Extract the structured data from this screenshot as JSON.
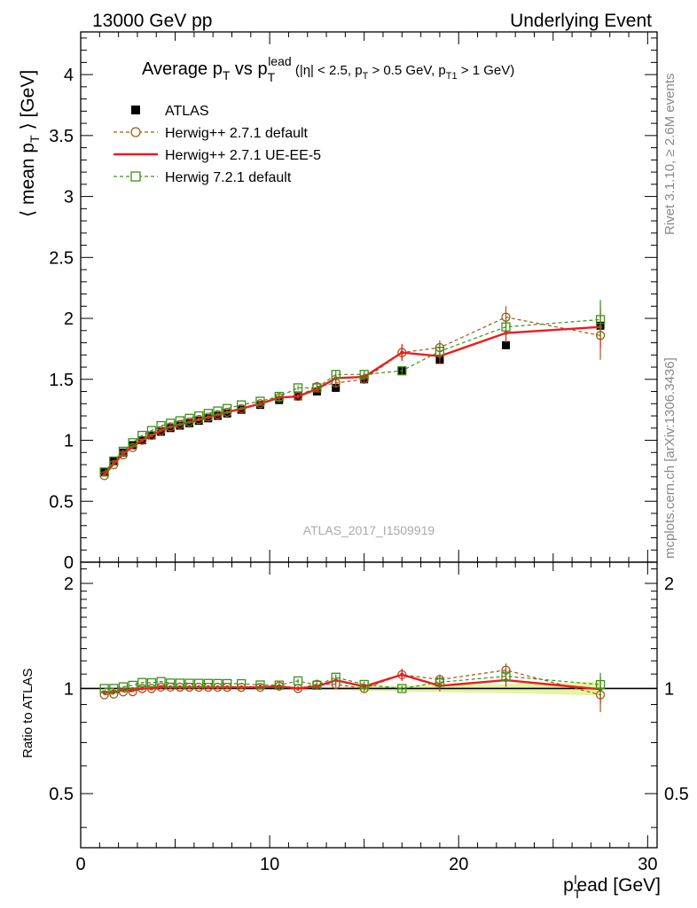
{
  "header": {
    "left": "13000 GeV pp",
    "right": "Underlying Event"
  },
  "side_labels": {
    "rivet": "Rivet 3.1.10, ≥ 2.6M events",
    "mcplots": "mcplots.cern.ch [arXiv:1306.3436]"
  },
  "chart_data": [
    {
      "type": "scatter",
      "panel": "main",
      "title_parts": {
        "pre": "Average p",
        "sub1": "T",
        "mid": " vs p",
        "sub2": "T",
        "sup2": "lead",
        "cond": " (|η| < 2.5, p",
        "cond_sub1": "T",
        "cond2": " > 0.5 GeV, p",
        "cond_sub2": "T1",
        "cond3": " > 1 GeV)"
      },
      "ylabel_parts": {
        "pre": "⟨ mean p",
        "sub": "T",
        "post": " ⟩ [GeV]"
      },
      "watermark": "ATLAS_2017_I1509919",
      "xlim": [
        0,
        30.5
      ],
      "ylim": [
        0,
        4.35
      ],
      "yticks": [
        0,
        0.5,
        1,
        1.5,
        2,
        2.5,
        3,
        3.5,
        4
      ],
      "ytick_labels": [
        "0",
        "0.5",
        "1",
        "1.5",
        "2",
        "2.5",
        "3",
        "3.5",
        "4"
      ],
      "legend": {
        "position": "top-left",
        "entries": [
          "ATLAS",
          "Herwig++ 2.7.1 default",
          "Herwig++ 2.7.1 UE-EE-5",
          "Herwig 7.2.1 default"
        ]
      },
      "x": [
        1.25,
        1.75,
        2.25,
        2.75,
        3.25,
        3.75,
        4.25,
        4.75,
        5.25,
        5.75,
        6.25,
        6.75,
        7.25,
        7.75,
        8.5,
        9.5,
        10.5,
        11.5,
        12.5,
        13.5,
        15.0,
        17.0,
        19.0,
        22.5,
        27.5
      ],
      "series": [
        {
          "name": "ATLAS",
          "color": "#000000",
          "marker": "filled-square",
          "values": [
            0.74,
            0.83,
            0.9,
            0.96,
            1.0,
            1.04,
            1.07,
            1.1,
            1.12,
            1.14,
            1.16,
            1.18,
            1.2,
            1.22,
            1.25,
            1.29,
            1.33,
            1.36,
            1.4,
            1.43,
            1.5,
            1.57,
            1.66,
            1.78,
            1.94
          ]
        },
        {
          "name": "Herwig++ 2.7.1 default",
          "color": "#a0591a",
          "marker": "open-circle",
          "line": "dashed",
          "values": [
            0.71,
            0.8,
            0.88,
            0.94,
            1.0,
            1.04,
            1.08,
            1.11,
            1.13,
            1.15,
            1.17,
            1.19,
            1.21,
            1.23,
            1.26,
            1.3,
            1.35,
            1.36,
            1.44,
            1.47,
            1.5,
            1.72,
            1.76,
            2.01,
            1.86
          ],
          "errors": [
            0,
            0,
            0,
            0,
            0,
            0,
            0,
            0,
            0,
            0,
            0,
            0,
            0,
            0,
            0,
            0,
            0.02,
            0.02,
            0.02,
            0.03,
            0.03,
            0.06,
            0.06,
            0.09,
            0.2
          ]
        },
        {
          "name": "Herwig++ 2.7.1 UE-EE-5",
          "color": "#ee1c1c",
          "marker": "dot",
          "line": "solid",
          "values": [
            0.72,
            0.81,
            0.89,
            0.95,
            1.0,
            1.04,
            1.08,
            1.11,
            1.13,
            1.15,
            1.17,
            1.19,
            1.21,
            1.23,
            1.26,
            1.3,
            1.35,
            1.36,
            1.42,
            1.51,
            1.52,
            1.72,
            1.69,
            1.88,
            1.93
          ],
          "errors": [
            0,
            0,
            0,
            0,
            0,
            0,
            0,
            0,
            0,
            0,
            0,
            0,
            0,
            0,
            0,
            0,
            0.02,
            0.02,
            0.02,
            0.03,
            0.03,
            0.07,
            0.06,
            0.08,
            0.17
          ]
        },
        {
          "name": "Herwig 7.2.1 default",
          "color": "#3d8f1a",
          "marker": "open-square",
          "line": "dashed",
          "values": [
            0.74,
            0.83,
            0.91,
            0.98,
            1.04,
            1.08,
            1.12,
            1.14,
            1.16,
            1.18,
            1.2,
            1.22,
            1.24,
            1.26,
            1.29,
            1.32,
            1.36,
            1.43,
            1.43,
            1.54,
            1.54,
            1.57,
            1.73,
            1.93,
            1.99
          ],
          "errors": [
            0,
            0,
            0,
            0,
            0,
            0,
            0,
            0,
            0,
            0,
            0,
            0,
            0,
            0,
            0,
            0,
            0.02,
            0.02,
            0.02,
            0.03,
            0.03,
            0.03,
            0.06,
            0.07,
            0.16
          ]
        }
      ]
    },
    {
      "type": "scatter",
      "panel": "ratio",
      "ylabel": "Ratio to ATLAS",
      "xlabel_parts": {
        "pre": "p",
        "sub": "T",
        "sup": "l",
        "post": "ead [GeV]"
      },
      "xlim": [
        0,
        30.5
      ],
      "ylim": [
        0.35,
        2.3
      ],
      "yscale": "log",
      "xticks": [
        0,
        10,
        20,
        30
      ],
      "xtick_labels": [
        "0",
        "10",
        "20",
        "30"
      ],
      "yticks": [
        0.5,
        1,
        2
      ],
      "ytick_labels": [
        "0.5",
        "1",
        "2"
      ],
      "reference_band": {
        "color": "#e4f5a3",
        "low": [
          0.995,
          0.995,
          0.995,
          0.995,
          0.995,
          0.995,
          0.995,
          0.995,
          0.995,
          0.995,
          0.995,
          0.995,
          0.995,
          0.995,
          0.995,
          0.993,
          0.993,
          0.99,
          0.99,
          0.99,
          0.985,
          0.98,
          0.975,
          0.97,
          0.955
        ],
        "high": [
          1.005,
          1.005,
          1.005,
          1.005,
          1.005,
          1.005,
          1.005,
          1.005,
          1.005,
          1.005,
          1.005,
          1.005,
          1.005,
          1.005,
          1.005,
          1.007,
          1.007,
          1.01,
          1.01,
          1.01,
          1.015,
          1.02,
          1.025,
          1.03,
          1.045
        ]
      }
    }
  ]
}
